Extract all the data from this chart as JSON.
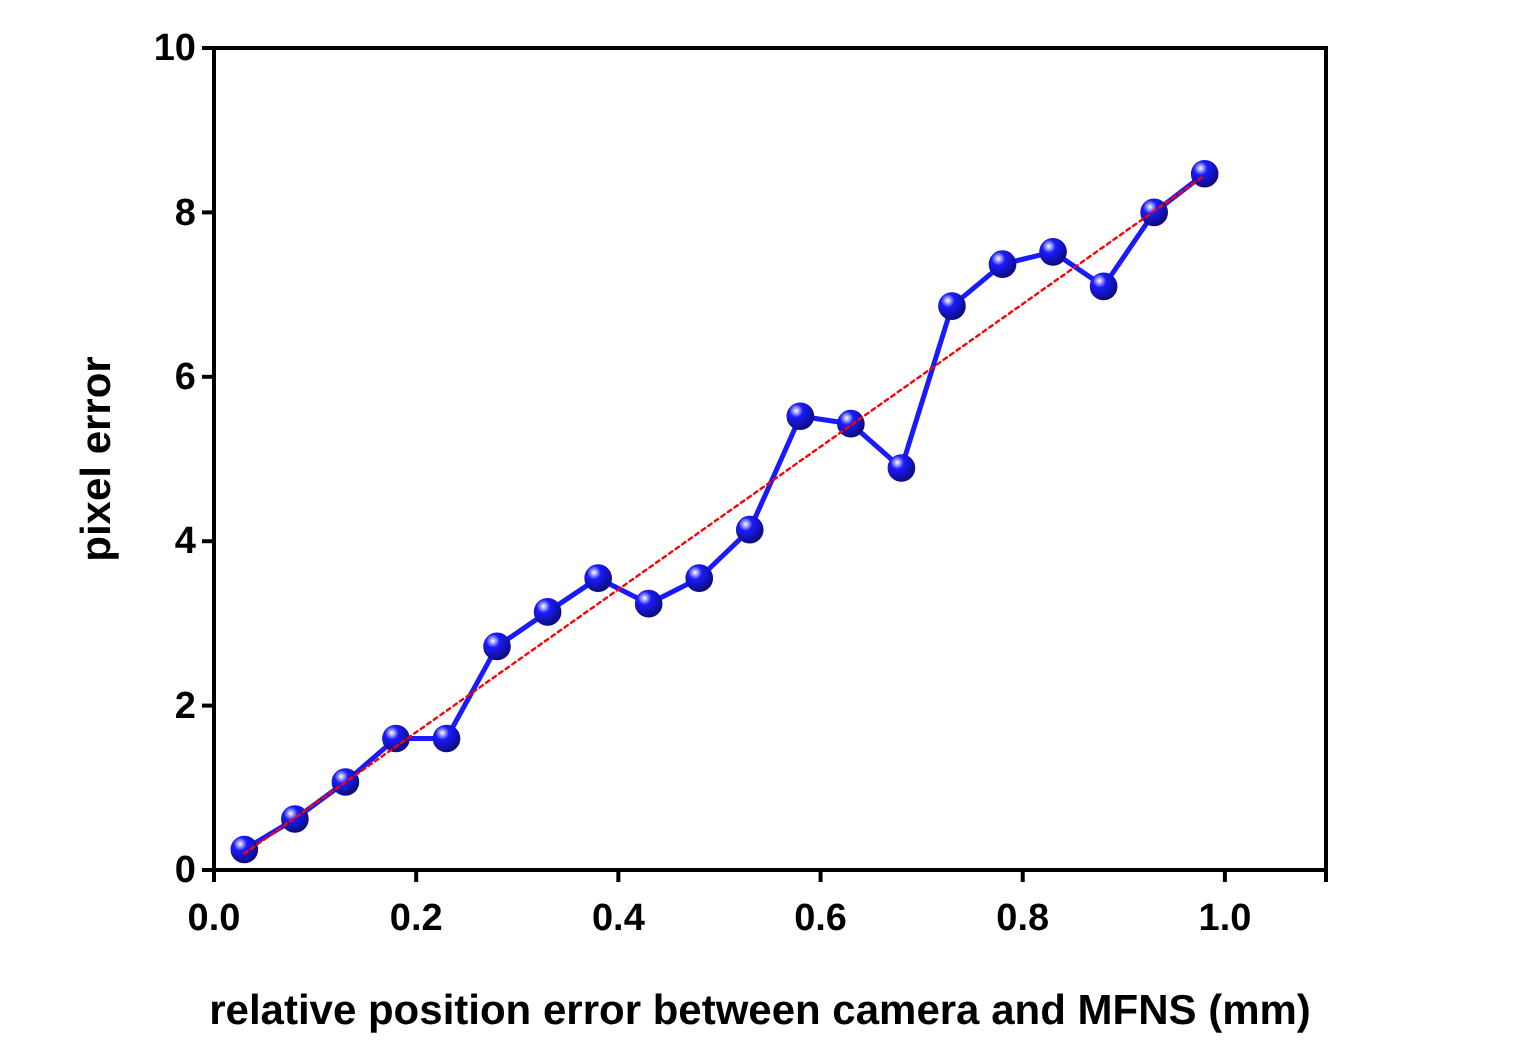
{
  "chart_data": {
    "type": "line",
    "xlabel": "relative position error between camera and MFNS (mm)",
    "ylabel": "pixel error",
    "xlim": [
      0,
      1.1
    ],
    "xticks": [
      {
        "value": 0,
        "label": "0.0"
      },
      0.2,
      0.4,
      0.6,
      0.8,
      {
        "value": 1,
        "label": "1.0"
      }
    ],
    "ylim": [
      0,
      10
    ],
    "yticks": [
      0,
      2,
      4,
      6,
      8,
      10
    ],
    "grid": false,
    "series": [
      {
        "color": "#1a1aff",
        "marker": "circle",
        "line_style": "solid",
        "x": [
          0.03,
          0.08,
          0.13,
          0.18,
          0.23,
          0.28,
          0.33,
          0.38,
          0.43,
          0.48,
          0.53,
          0.58,
          0.63,
          0.68,
          0.73,
          0.78,
          0.83,
          0.88,
          0.93,
          0.98
        ],
        "values": [
          0.25,
          0.62,
          1.07,
          1.6,
          1.6,
          2.72,
          3.14,
          3.55,
          3.24,
          3.55,
          4.14,
          5.52,
          5.43,
          4.89,
          6.86,
          7.37,
          7.52,
          7.1,
          8.0,
          8.47
        ]
      },
      {
        "type": "line",
        "color": "#ff0000",
        "marker": "none",
        "line_style": "dotted",
        "x": [
          0.03,
          0.98
        ],
        "values": [
          0.2,
          8.45
        ]
      }
    ]
  }
}
